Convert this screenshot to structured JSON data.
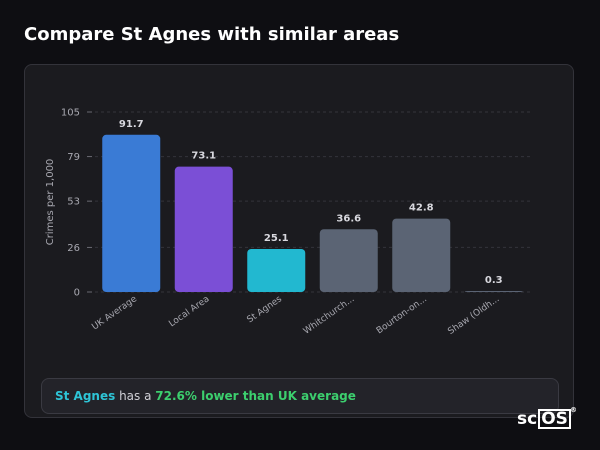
{
  "header": {
    "title": "Compare St Agnes with similar areas"
  },
  "summary": {
    "area": "St Agnes",
    "middle": " has a ",
    "highlight": "72.6% lower than UK average"
  },
  "brand": {
    "prefix": "sc",
    "boxed": "OS",
    "mark": "®"
  },
  "colors": {
    "uk_average": "#3a7bd5",
    "local_area": "#7b4fd6",
    "st_agnes": "#22b8d0",
    "other": "#5b6474",
    "summary_area": "#2ec4d6",
    "summary_highlight": "#3ccf6e"
  },
  "chart_data": {
    "type": "bar",
    "title": "",
    "xlabel": "",
    "ylabel": "Crimes per 1,000",
    "ylim": [
      0,
      105
    ],
    "yticks": [
      0,
      26,
      53,
      79,
      105
    ],
    "grid": true,
    "categories": [
      "UK Average",
      "Local Area",
      "St Agnes",
      "Whitchurch...",
      "Bourton-on...",
      "Shaw (Oldh..."
    ],
    "values": [
      91.7,
      73.1,
      25.1,
      36.6,
      42.8,
      0.3
    ],
    "data_labels": [
      "91.7",
      "73.1",
      "25.1",
      "36.6",
      "42.8",
      "0.3"
    ],
    "bar_colors": [
      "#3a7bd5",
      "#7b4fd6",
      "#22b8d0",
      "#5b6474",
      "#5b6474",
      "#5b6474"
    ]
  }
}
